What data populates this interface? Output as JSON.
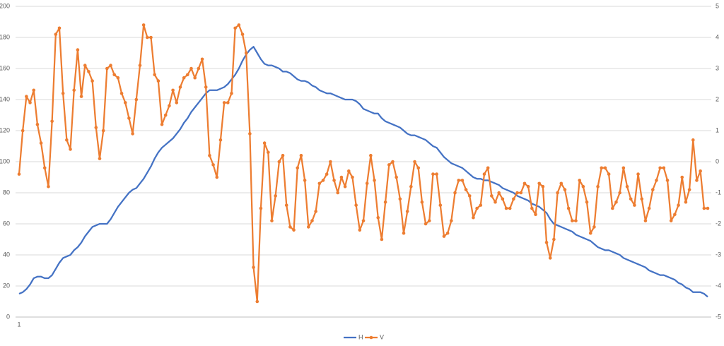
{
  "chart_data": {
    "type": "line",
    "categories": [
      "1",
      null,
      null,
      null,
      null,
      null,
      null,
      null,
      null,
      null,
      null,
      null,
      null,
      null,
      null,
      null,
      null,
      null,
      null,
      null,
      null,
      null,
      null,
      null,
      null,
      null,
      null,
      null,
      null,
      null,
      null,
      null,
      null,
      null,
      null,
      null,
      null,
      null,
      null,
      null,
      null,
      null,
      null,
      null,
      null,
      null,
      null,
      null,
      null,
      null,
      null,
      null,
      null,
      null,
      null,
      null,
      null,
      null,
      null,
      null,
      null,
      null,
      null,
      null,
      null,
      null,
      null,
      null,
      null,
      null,
      null,
      null,
      null,
      null,
      null,
      null,
      null,
      null,
      null,
      null,
      null,
      null,
      null,
      null,
      null,
      null,
      null,
      null,
      null,
      null,
      null,
      null,
      null,
      null,
      null,
      null,
      null,
      null,
      null,
      null,
      null,
      null,
      null,
      null,
      null,
      null,
      null,
      null,
      null,
      null,
      null,
      null,
      null,
      null,
      null,
      null,
      null,
      null,
      null,
      null,
      null,
      null,
      null,
      null,
      null,
      null,
      null,
      null,
      null,
      null,
      null,
      null,
      null,
      null,
      null,
      null,
      null,
      null,
      null,
      null,
      null,
      null,
      null,
      null,
      null,
      null,
      null,
      null,
      null,
      null,
      null,
      null,
      null,
      null,
      null,
      null,
      null,
      null,
      null,
      null,
      null,
      null,
      null,
      null,
      null,
      null,
      null,
      null,
      null,
      null,
      null,
      null,
      null,
      null,
      null,
      null,
      null,
      null,
      null,
      null,
      null,
      null,
      null,
      null,
      null,
      null,
      null,
      null,
      null
    ],
    "series": [
      {
        "name": "H",
        "color": "#4472c4",
        "marker": false,
        "values": [
          15,
          16,
          18,
          21,
          25,
          26,
          26,
          25,
          25,
          27,
          31,
          35,
          38,
          39,
          40,
          43,
          45,
          48,
          52,
          55,
          58,
          59,
          60,
          60,
          60,
          63,
          67,
          71,
          74,
          77,
          80,
          82,
          83,
          86,
          89,
          93,
          97,
          102,
          106,
          109,
          111,
          113,
          115,
          118,
          121,
          125,
          128,
          132,
          135,
          138,
          141,
          144,
          146,
          146,
          146,
          147,
          148,
          150,
          153,
          156,
          160,
          165,
          169,
          172,
          174,
          170,
          166,
          163,
          162,
          162,
          161,
          160,
          158,
          158,
          157,
          155,
          153,
          152,
          152,
          151,
          149,
          148,
          146,
          145,
          144,
          144,
          143,
          142,
          141,
          140,
          140,
          140,
          139,
          137,
          134,
          133,
          132,
          131,
          131,
          128,
          126,
          125,
          124,
          123,
          122,
          120,
          118,
          117,
          117,
          116,
          115,
          114,
          112,
          110,
          109,
          106,
          103,
          101,
          99,
          98,
          97,
          96,
          94,
          92,
          90,
          89,
          89,
          88,
          88,
          87,
          86,
          85,
          83,
          82,
          81,
          80,
          78,
          77,
          76,
          75,
          73,
          72,
          71,
          69,
          67,
          63,
          60,
          59,
          58,
          57,
          56,
          55,
          53,
          52,
          51,
          50,
          49,
          47,
          45,
          44,
          43,
          43,
          42,
          41,
          40,
          38,
          37,
          36,
          35,
          34,
          33,
          32,
          30,
          29,
          28,
          27,
          27,
          26,
          25,
          24,
          22,
          21,
          19,
          18,
          16,
          16,
          16,
          15,
          13
        ]
      },
      {
        "name": "V",
        "color": "#ed7d31",
        "marker": true,
        "axis": "y2",
        "values": [
          -0.4,
          1.0,
          2.1,
          1.9,
          2.3,
          1.2,
          0.6,
          -0.2,
          -0.8,
          1.3,
          4.1,
          4.3,
          2.2,
          0.7,
          0.4,
          2.3,
          3.6,
          2.1,
          3.1,
          2.9,
          2.6,
          1.1,
          0.1,
          1.0,
          3.0,
          3.1,
          2.8,
          2.7,
          2.2,
          1.9,
          1.4,
          0.9,
          2.0,
          3.1,
          4.4,
          4.0,
          4.0,
          2.8,
          2.6,
          1.2,
          1.5,
          1.8,
          2.3,
          1.9,
          2.4,
          2.7,
          2.8,
          3.0,
          2.7,
          3.0,
          3.3,
          2.4,
          0.2,
          -0.1,
          -0.5,
          0.7,
          1.9,
          1.9,
          2.2,
          4.3,
          4.4,
          4.1,
          3.5,
          0.9,
          -3.4,
          -4.5,
          -1.5,
          0.6,
          0.3,
          -1.9,
          -1.1,
          0.0,
          0.2,
          -1.4,
          -2.1,
          -2.2,
          -0.2,
          0.2,
          -0.6,
          -2.1,
          -1.9,
          -1.6,
          -0.7,
          -0.6,
          -0.4,
          0.0,
          -0.6,
          -1.0,
          -0.5,
          -0.8,
          -0.3,
          -0.5,
          -1.4,
          -2.2,
          -1.9,
          -0.7,
          0.2,
          -0.6,
          -1.8,
          -2.5,
          -1.3,
          -0.1,
          0.0,
          -0.5,
          -1.2,
          -2.3,
          -1.6,
          -0.8,
          0.0,
          -0.2,
          -1.3,
          -2.0,
          -1.9,
          -0.4,
          -0.4,
          -1.4,
          -2.4,
          -2.3,
          -1.9,
          -1.0,
          -0.6,
          -0.6,
          -0.9,
          -1.1,
          -1.8,
          -1.5,
          -1.4,
          -0.4,
          -0.2,
          -1.1,
          -1.3,
          -1.0,
          -1.2,
          -1.5,
          -1.5,
          -1.2,
          -1.0,
          -1.0,
          -0.7,
          -0.8,
          -1.5,
          -1.7,
          -0.7,
          -0.8,
          -2.6,
          -3.1,
          -2.5,
          -1.0,
          -0.7,
          -0.9,
          -1.5,
          -1.9,
          -1.9,
          -0.6,
          -0.8,
          -1.3,
          -2.3,
          -2.1,
          -0.8,
          -0.2,
          -0.2,
          -0.4,
          -1.5,
          -1.3,
          -1.0,
          -0.2,
          -0.8,
          -1.2,
          -1.4,
          -0.4,
          -1.2,
          -1.9,
          -1.5,
          -0.9,
          -0.6,
          -0.2,
          -0.2,
          -0.6,
          -1.9,
          -1.7,
          -1.4,
          -0.5,
          -1.3,
          -0.9,
          0.7,
          -0.6,
          -0.3,
          -1.5,
          -1.5
        ]
      }
    ],
    "ylim": [
      0,
      200
    ],
    "yticks": [
      0,
      20,
      40,
      60,
      80,
      100,
      120,
      140,
      160,
      180,
      200
    ],
    "y2lim": [
      -5,
      5
    ],
    "y2ticks": [
      -5,
      -4,
      -3,
      -2,
      -1,
      0,
      1,
      2,
      3,
      4,
      5
    ],
    "grid": true,
    "legend": "bottom"
  }
}
